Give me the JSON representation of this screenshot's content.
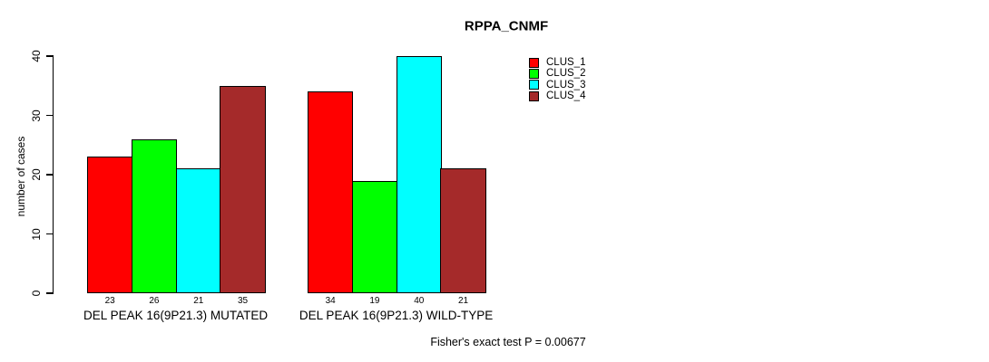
{
  "chart_data": {
    "type": "bar",
    "title": "RPPA_CNMF",
    "xlabel": "",
    "ylabel": "number of cases",
    "ylim": [
      0,
      40
    ],
    "yticks": [
      0,
      10,
      20,
      30,
      40
    ],
    "grid": false,
    "legend_position": "top-right",
    "categories": [
      "DEL PEAK 16(9P21.3) MUTATED",
      "DEL PEAK 16(9P21.3) WILD-TYPE"
    ],
    "series": [
      {
        "name": "CLUS_1",
        "color": "#FF0000",
        "values": [
          23,
          34
        ]
      },
      {
        "name": "CLUS_2",
        "color": "#00FF00",
        "values": [
          26,
          19
        ]
      },
      {
        "name": "CLUS_3",
        "color": "#00FFFF",
        "values": [
          21,
          40
        ]
      },
      {
        "name": "CLUS_4",
        "color": "#A52A2A",
        "values": [
          35,
          21
        ]
      }
    ],
    "bar_value_labels": [
      [
        "23",
        "26",
        "21",
        "35"
      ],
      [
        "34",
        "19",
        "40",
        "21"
      ]
    ],
    "annotation": "Fisher's exact test P = 0.00677"
  }
}
